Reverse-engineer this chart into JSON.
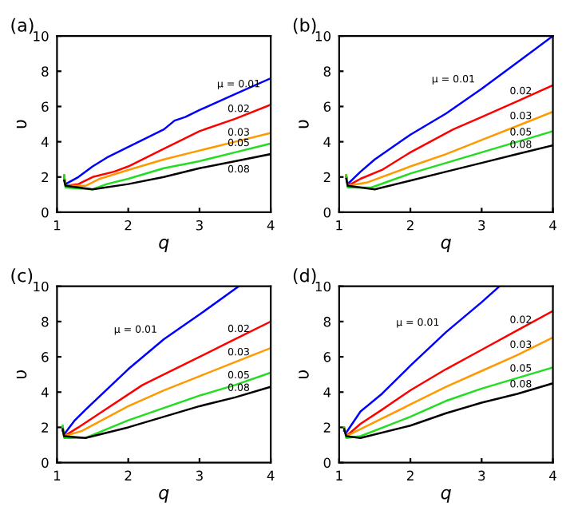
{
  "chart_data": [
    {
      "type": "line",
      "title": "(a)",
      "xlabel": "q",
      "ylabel": "υ",
      "xlim": [
        1,
        4
      ],
      "ylim": [
        0,
        10
      ],
      "xticks": [
        1,
        2,
        3,
        4
      ],
      "yticks": [
        0,
        2,
        4,
        6,
        8,
        10
      ],
      "grid": false,
      "legend": false,
      "series": [
        {
          "name": "μ = 0.01",
          "color": "#0000ff",
          "x": [
            1.1,
            1.12,
            1.3,
            1.5,
            1.7,
            2.0,
            2.5,
            2.65,
            2.8,
            3.0,
            3.5,
            4.0
          ],
          "values": [
            2.0,
            1.6,
            2.0,
            2.6,
            3.1,
            3.7,
            4.7,
            5.2,
            5.4,
            5.8,
            6.7,
            7.6
          ]
        },
        {
          "name": "0.02",
          "color": "#ff0000",
          "x": [
            1.1,
            1.12,
            1.3,
            1.5,
            1.8,
            2.0,
            2.5,
            3.0,
            3.5,
            4.0
          ],
          "values": [
            2.1,
            1.5,
            1.6,
            2.0,
            2.3,
            2.6,
            3.6,
            4.6,
            5.3,
            6.1
          ]
        },
        {
          "name": "0.03",
          "color": "#ff9900",
          "x": [
            1.1,
            1.12,
            1.4,
            1.6,
            2.0,
            2.5,
            3.0,
            3.5,
            4.0
          ],
          "values": [
            2.1,
            1.5,
            1.5,
            1.9,
            2.4,
            3.0,
            3.5,
            4.0,
            4.5
          ]
        },
        {
          "name": "0.05",
          "color": "#22dd22",
          "x": [
            1.1,
            1.12,
            1.5,
            1.7,
            2.0,
            2.5,
            3.0,
            3.5,
            4.0
          ],
          "values": [
            2.1,
            1.4,
            1.3,
            1.6,
            1.9,
            2.5,
            2.9,
            3.4,
            3.9
          ]
        },
        {
          "name": "0.08",
          "color": "#000000",
          "x": [
            1.1,
            1.12,
            1.5,
            2.0,
            2.5,
            3.0,
            3.5,
            4.0
          ],
          "values": [
            1.8,
            1.5,
            1.3,
            1.6,
            2.0,
            2.5,
            2.9,
            3.3
          ]
        }
      ]
    },
    {
      "type": "line",
      "title": "(b)",
      "xlabel": "q",
      "ylabel": "υ",
      "xlim": [
        1,
        4
      ],
      "ylim": [
        0,
        10
      ],
      "xticks": [
        1,
        2,
        3,
        4
      ],
      "yticks": [
        0,
        2,
        4,
        6,
        8,
        10
      ],
      "grid": false,
      "legend": false,
      "series": [
        {
          "name": "μ = 0.01",
          "color": "#0000ff",
          "x": [
            1.1,
            1.12,
            1.3,
            1.5,
            2.0,
            2.5,
            3.0,
            3.5,
            4.0
          ],
          "values": [
            2.0,
            1.6,
            2.3,
            3.0,
            4.4,
            5.6,
            7.0,
            8.5,
            10
          ]
        },
        {
          "name": "0.02",
          "color": "#ff0000",
          "x": [
            1.1,
            1.12,
            1.3,
            1.6,
            2.0,
            2.6,
            3.0,
            3.5,
            4.0
          ],
          "values": [
            2.1,
            1.5,
            1.9,
            2.4,
            3.4,
            4.7,
            5.4,
            6.3,
            7.2
          ]
        },
        {
          "name": "0.03",
          "color": "#ff9900",
          "x": [
            1.1,
            1.12,
            1.4,
            2.0,
            2.5,
            3.0,
            3.5,
            4.0
          ],
          "values": [
            2.1,
            1.5,
            1.7,
            2.6,
            3.3,
            4.1,
            4.9,
            5.7
          ]
        },
        {
          "name": "0.05",
          "color": "#22dd22",
          "x": [
            1.1,
            1.12,
            1.45,
            2.0,
            2.5,
            3.0,
            3.5,
            4.0
          ],
          "values": [
            2.1,
            1.4,
            1.4,
            2.2,
            2.8,
            3.4,
            4.0,
            4.6
          ]
        },
        {
          "name": "0.08",
          "color": "#000000",
          "x": [
            1.1,
            1.12,
            1.5,
            2.0,
            2.5,
            3.0,
            3.5,
            4.0
          ],
          "values": [
            1.9,
            1.5,
            1.3,
            1.8,
            2.3,
            2.8,
            3.3,
            3.8
          ]
        }
      ]
    },
    {
      "type": "line",
      "title": "(c)",
      "xlabel": "q",
      "ylabel": "υ",
      "xlim": [
        1,
        4
      ],
      "ylim": [
        0,
        10
      ],
      "xticks": [
        1,
        2,
        3,
        4
      ],
      "yticks": [
        0,
        2,
        4,
        6,
        8,
        10
      ],
      "grid": false,
      "legend": false,
      "series": [
        {
          "name": "μ = 0.01",
          "color": "#0000ff",
          "x": [
            1.08,
            1.1,
            1.25,
            1.4,
            2.0,
            2.5,
            3.0,
            3.55
          ],
          "values": [
            1.8,
            1.6,
            2.4,
            3.0,
            5.3,
            7.0,
            8.4,
            10
          ]
        },
        {
          "name": "0.02",
          "color": "#ff0000",
          "x": [
            1.08,
            1.1,
            1.3,
            1.6,
            2.2,
            2.5,
            3.0,
            3.5,
            4.0
          ],
          "values": [
            2.0,
            1.5,
            2.0,
            2.8,
            4.4,
            5.0,
            6.0,
            7.0,
            8.0
          ]
        },
        {
          "name": "0.03",
          "color": "#ff9900",
          "x": [
            1.08,
            1.1,
            1.35,
            2.0,
            2.5,
            3.0,
            3.5,
            4.0
          ],
          "values": [
            2.0,
            1.5,
            1.8,
            3.2,
            4.1,
            4.9,
            5.7,
            6.5
          ]
        },
        {
          "name": "0.05",
          "color": "#22dd22",
          "x": [
            1.08,
            1.1,
            1.4,
            2.0,
            2.5,
            3.0,
            3.5,
            4.0
          ],
          "values": [
            2.1,
            1.4,
            1.4,
            2.4,
            3.1,
            3.8,
            4.4,
            5.1
          ]
        },
        {
          "name": "0.08",
          "color": "#000000",
          "x": [
            1.08,
            1.1,
            1.4,
            2.0,
            2.5,
            3.0,
            3.5,
            4.0
          ],
          "values": [
            1.9,
            1.5,
            1.4,
            2.0,
            2.6,
            3.2,
            3.7,
            4.3
          ]
        }
      ]
    },
    {
      "type": "line",
      "title": "(d)",
      "xlabel": "q",
      "ylabel": "υ",
      "xlim": [
        1,
        4
      ],
      "ylim": [
        0,
        10
      ],
      "xticks": [
        1,
        2,
        3,
        4
      ],
      "yticks": [
        0,
        2,
        4,
        6,
        8,
        10
      ],
      "grid": false,
      "legend": false,
      "series": [
        {
          "name": "μ = 0.01",
          "color": "#0000ff",
          "x": [
            1.07,
            1.1,
            1.3,
            1.6,
            2.0,
            2.5,
            3.0,
            3.25
          ],
          "values": [
            1.8,
            1.7,
            2.9,
            3.9,
            5.5,
            7.4,
            9.1,
            10
          ]
        },
        {
          "name": "0.02",
          "color": "#ff0000",
          "x": [
            1.07,
            1.1,
            1.3,
            1.6,
            2.0,
            2.5,
            3.0,
            3.5,
            4.0
          ],
          "values": [
            2.0,
            1.5,
            2.2,
            3.0,
            4.1,
            5.3,
            6.4,
            7.5,
            8.6
          ]
        },
        {
          "name": "0.03",
          "color": "#ff9900",
          "x": [
            1.07,
            1.1,
            1.3,
            2.0,
            2.5,
            3.0,
            3.5,
            4.0
          ],
          "values": [
            2.0,
            1.5,
            1.9,
            3.3,
            4.3,
            5.2,
            6.1,
            7.1
          ]
        },
        {
          "name": "0.05",
          "color": "#22dd22",
          "x": [
            1.07,
            1.1,
            1.3,
            2.0,
            2.5,
            3.0,
            3.5,
            4.0
          ],
          "values": [
            2.0,
            1.4,
            1.5,
            2.6,
            3.5,
            4.2,
            4.8,
            5.4
          ]
        },
        {
          "name": "0.08",
          "color": "#000000",
          "x": [
            1.07,
            1.1,
            1.3,
            2.0,
            2.5,
            3.0,
            3.5,
            4.0
          ],
          "values": [
            1.9,
            1.5,
            1.4,
            2.1,
            2.8,
            3.4,
            3.9,
            4.5
          ]
        }
      ]
    }
  ]
}
